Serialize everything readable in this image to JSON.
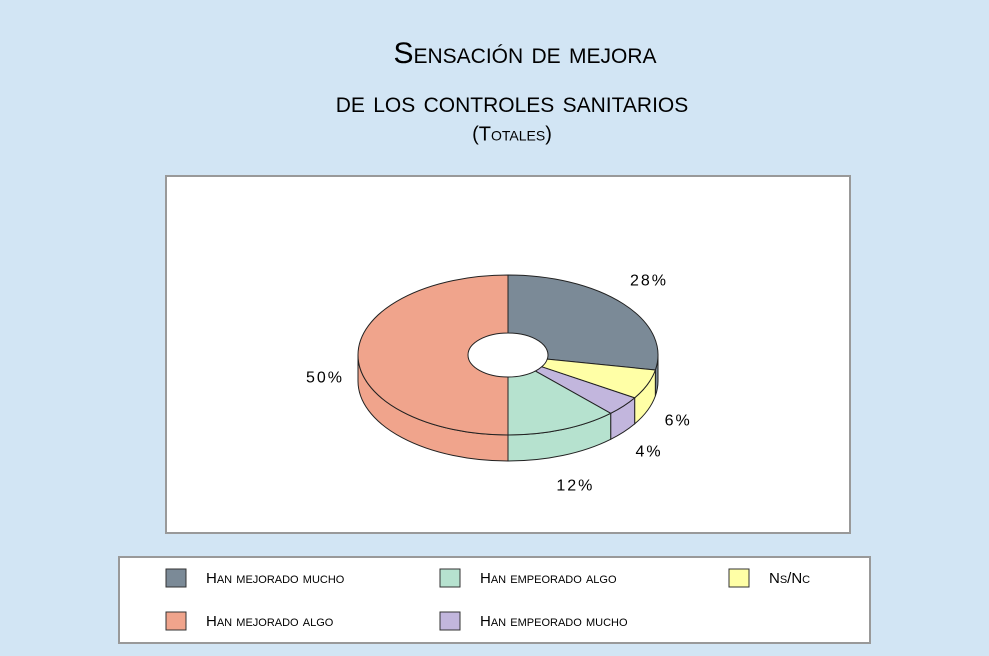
{
  "chart_data": {
    "type": "pie",
    "title": "Sensación de mejora",
    "title_line2": "de los controles sanitarios",
    "subtitle": "(Totales)",
    "categories": [
      "Han mejorado mucho",
      "Ns/Nc",
      "Han empeorado mucho",
      "Han empeorado algo",
      "Han mejorado algo"
    ],
    "values": [
      28,
      6,
      4,
      12,
      50
    ],
    "value_labels": [
      "28%",
      "6%",
      "4%",
      "12%",
      "50%"
    ],
    "colors": [
      "#7b8a97",
      "#ffffa6",
      "#c2b6dd",
      "#b6e2cf",
      "#f0a48c"
    ],
    "legend": "bottom"
  }
}
